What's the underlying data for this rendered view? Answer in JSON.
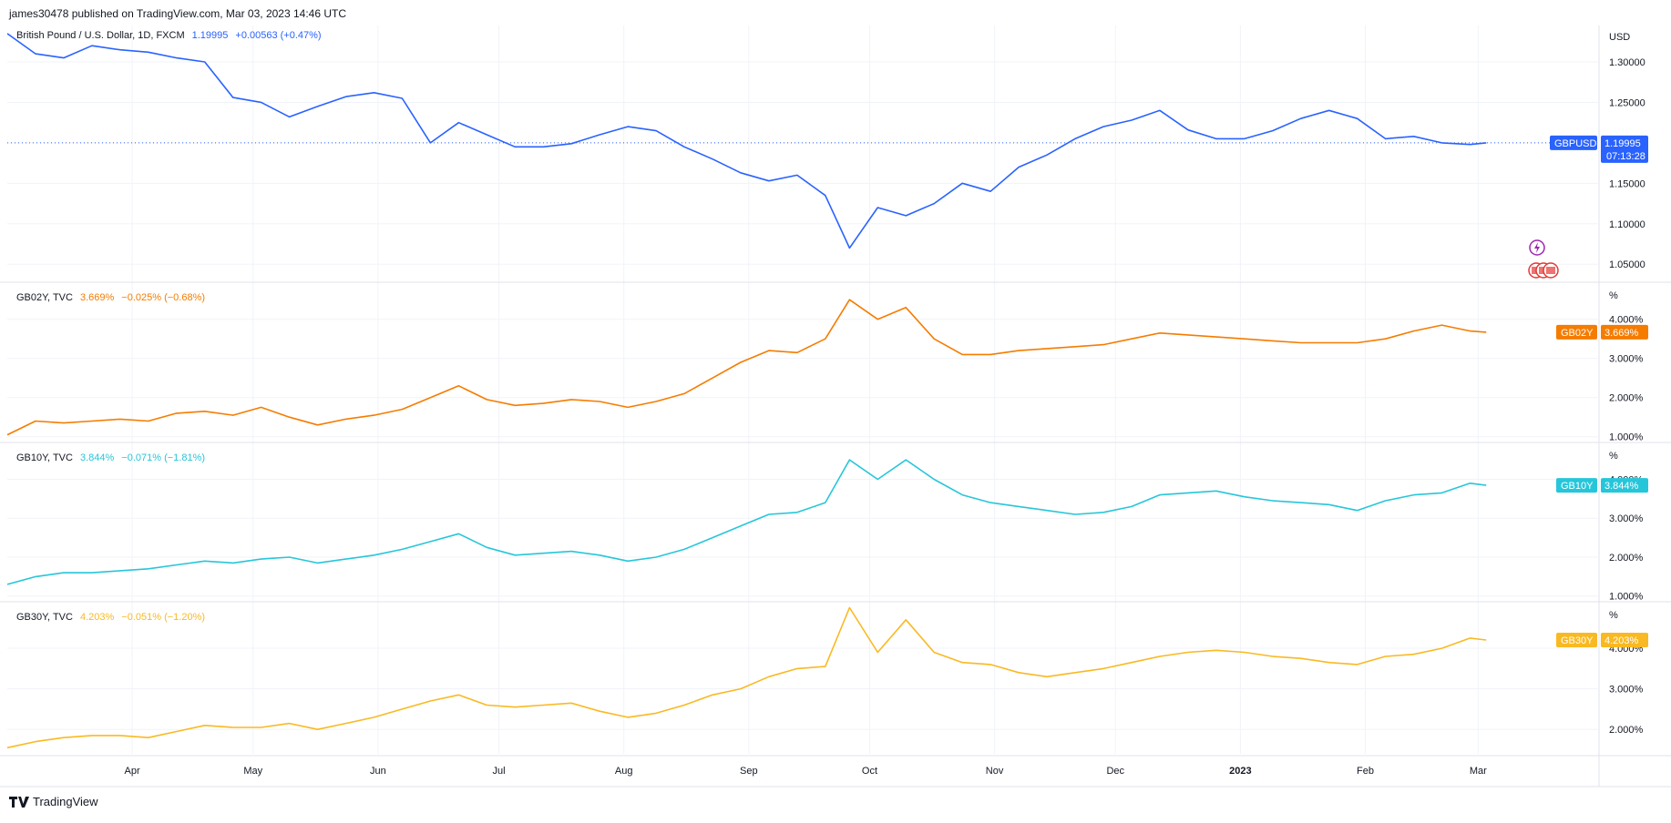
{
  "header": {
    "publisher": "james30478 published on TradingView.com, Mar 03, 2023 14:46 UTC"
  },
  "footer": {
    "brand": "TradingView"
  },
  "colors": {
    "gbpusd": "#2962ff",
    "gb02y": "#f57c00",
    "gb10y": "#26c6da",
    "gb30y": "#f9b922",
    "grid": "#f0f3fa",
    "axis_text": "#131722"
  },
  "chart_data": [
    {
      "type": "line",
      "pane": "gbpusd",
      "legend": {
        "name": "British Pound / U.S. Dollar, 1D, FXCM",
        "last": "1.19995",
        "change": "+0.00563 (+0.47%)"
      },
      "unit_label": "USD",
      "ylim": [
        1.03,
        1.345
      ],
      "yticks": [
        "1.30000",
        "1.25000",
        "1.20000",
        "1.15000",
        "1.10000",
        "1.05000"
      ],
      "ytick_values": [
        1.3,
        1.25,
        1.2,
        1.15,
        1.1,
        1.05
      ],
      "price_tag": {
        "symbol": "GBPUSD",
        "value": "1.19995",
        "countdown": "07:13:28",
        "num": 1.19995
      },
      "x": [
        "2022-03-01",
        "2022-03-08",
        "2022-03-15",
        "2022-03-22",
        "2022-03-29",
        "2022-04-05",
        "2022-04-12",
        "2022-04-19",
        "2022-04-26",
        "2022-05-03",
        "2022-05-10",
        "2022-05-17",
        "2022-05-24",
        "2022-05-31",
        "2022-06-07",
        "2022-06-14",
        "2022-06-21",
        "2022-06-28",
        "2022-07-05",
        "2022-07-12",
        "2022-07-19",
        "2022-07-26",
        "2022-08-02",
        "2022-08-09",
        "2022-08-16",
        "2022-08-23",
        "2022-08-30",
        "2022-09-06",
        "2022-09-13",
        "2022-09-20",
        "2022-09-26",
        "2022-10-03",
        "2022-10-10",
        "2022-10-17",
        "2022-10-24",
        "2022-10-31",
        "2022-11-07",
        "2022-11-14",
        "2022-11-21",
        "2022-11-28",
        "2022-12-05",
        "2022-12-12",
        "2022-12-19",
        "2022-12-26",
        "2023-01-02",
        "2023-01-09",
        "2023-01-16",
        "2023-01-23",
        "2023-01-30",
        "2023-02-06",
        "2023-02-13",
        "2023-02-20",
        "2023-02-27",
        "2023-03-03"
      ],
      "values": [
        1.335,
        1.31,
        1.305,
        1.32,
        1.315,
        1.312,
        1.305,
        1.3,
        1.256,
        1.25,
        1.232,
        1.245,
        1.257,
        1.262,
        1.255,
        1.2,
        1.225,
        1.21,
        1.195,
        1.195,
        1.199,
        1.21,
        1.22,
        1.215,
        1.195,
        1.18,
        1.163,
        1.153,
        1.16,
        1.135,
        1.07,
        1.12,
        1.11,
        1.125,
        1.15,
        1.14,
        1.17,
        1.185,
        1.205,
        1.22,
        1.228,
        1.24,
        1.216,
        1.205,
        1.205,
        1.215,
        1.23,
        1.24,
        1.23,
        1.205,
        1.208,
        1.2,
        1.198,
        1.19995
      ]
    },
    {
      "type": "line",
      "pane": "gb02y",
      "legend": {
        "name": "GB02Y, TVC",
        "last": "3.669%",
        "change": "−0.025% (−0.68%)"
      },
      "unit_label": "%",
      "ylim": [
        0.9,
        4.9
      ],
      "yticks": [
        "4.000%",
        "3.000%",
        "2.000%",
        "1.000%"
      ],
      "ytick_values": [
        4,
        3,
        2,
        1
      ],
      "price_tag": {
        "symbol": "GB02Y",
        "value": "3.669%",
        "num": 3.669
      },
      "x": [
        "2022-03-01",
        "2022-03-08",
        "2022-03-15",
        "2022-03-22",
        "2022-03-29",
        "2022-04-05",
        "2022-04-12",
        "2022-04-19",
        "2022-04-26",
        "2022-05-03",
        "2022-05-10",
        "2022-05-17",
        "2022-05-24",
        "2022-05-31",
        "2022-06-07",
        "2022-06-14",
        "2022-06-21",
        "2022-06-28",
        "2022-07-05",
        "2022-07-12",
        "2022-07-19",
        "2022-07-26",
        "2022-08-02",
        "2022-08-09",
        "2022-08-16",
        "2022-08-23",
        "2022-08-30",
        "2022-09-06",
        "2022-09-13",
        "2022-09-20",
        "2022-09-26",
        "2022-10-03",
        "2022-10-10",
        "2022-10-17",
        "2022-10-24",
        "2022-10-31",
        "2022-11-07",
        "2022-11-14",
        "2022-11-21",
        "2022-11-28",
        "2022-12-05",
        "2022-12-12",
        "2022-12-19",
        "2022-12-26",
        "2023-01-02",
        "2023-01-09",
        "2023-01-16",
        "2023-01-23",
        "2023-01-30",
        "2023-02-06",
        "2023-02-13",
        "2023-02-20",
        "2023-02-27",
        "2023-03-03"
      ],
      "values": [
        1.05,
        1.4,
        1.35,
        1.4,
        1.45,
        1.4,
        1.6,
        1.65,
        1.55,
        1.75,
        1.5,
        1.3,
        1.45,
        1.55,
        1.7,
        2.0,
        2.3,
        1.95,
        1.8,
        1.85,
        1.95,
        1.9,
        1.75,
        1.9,
        2.1,
        2.5,
        2.9,
        3.2,
        3.15,
        3.5,
        4.5,
        4.0,
        4.3,
        3.5,
        3.1,
        3.1,
        3.2,
        3.25,
        3.3,
        3.35,
        3.5,
        3.65,
        3.6,
        3.55,
        3.5,
        3.45,
        3.4,
        3.4,
        3.4,
        3.5,
        3.7,
        3.85,
        3.7,
        3.669
      ]
    },
    {
      "type": "line",
      "pane": "gb10y",
      "legend": {
        "name": "GB10Y, TVC",
        "last": "3.844%",
        "change": "−0.071% (−1.81%)"
      },
      "unit_label": "%",
      "ylim": [
        0.9,
        4.9
      ],
      "yticks": [
        "4.000%",
        "3.000%",
        "2.000%",
        "1.000%"
      ],
      "ytick_values": [
        4,
        3,
        2,
        1
      ],
      "price_tag": {
        "symbol": "GB10Y",
        "value": "3.844%",
        "num": 3.844
      },
      "x": [
        "2022-03-01",
        "2022-03-08",
        "2022-03-15",
        "2022-03-22",
        "2022-03-29",
        "2022-04-05",
        "2022-04-12",
        "2022-04-19",
        "2022-04-26",
        "2022-05-03",
        "2022-05-10",
        "2022-05-17",
        "2022-05-24",
        "2022-05-31",
        "2022-06-07",
        "2022-06-14",
        "2022-06-21",
        "2022-06-28",
        "2022-07-05",
        "2022-07-12",
        "2022-07-19",
        "2022-07-26",
        "2022-08-02",
        "2022-08-09",
        "2022-08-16",
        "2022-08-23",
        "2022-08-30",
        "2022-09-06",
        "2022-09-13",
        "2022-09-20",
        "2022-09-26",
        "2022-10-03",
        "2022-10-10",
        "2022-10-17",
        "2022-10-24",
        "2022-10-31",
        "2022-11-07",
        "2022-11-14",
        "2022-11-21",
        "2022-11-28",
        "2022-12-05",
        "2022-12-12",
        "2022-12-19",
        "2022-12-26",
        "2023-01-02",
        "2023-01-09",
        "2023-01-16",
        "2023-01-23",
        "2023-01-30",
        "2023-02-06",
        "2023-02-13",
        "2023-02-20",
        "2023-02-27",
        "2023-03-03"
      ],
      "values": [
        1.3,
        1.5,
        1.6,
        1.6,
        1.65,
        1.7,
        1.8,
        1.9,
        1.85,
        1.95,
        2.0,
        1.85,
        1.95,
        2.05,
        2.2,
        2.4,
        2.6,
        2.25,
        2.05,
        2.1,
        2.15,
        2.05,
        1.9,
        2.0,
        2.2,
        2.5,
        2.8,
        3.1,
        3.15,
        3.4,
        4.5,
        4.0,
        4.5,
        4.0,
        3.6,
        3.4,
        3.3,
        3.2,
        3.1,
        3.15,
        3.3,
        3.6,
        3.65,
        3.7,
        3.55,
        3.45,
        3.4,
        3.35,
        3.2,
        3.45,
        3.6,
        3.65,
        3.9,
        3.844
      ]
    },
    {
      "type": "line",
      "pane": "gb30y",
      "legend": {
        "name": "GB30Y, TVC",
        "last": "4.203%",
        "change": "−0.051% (−1.20%)"
      },
      "unit_label": "%",
      "ylim": [
        1.4,
        5.1
      ],
      "yticks": [
        "4.000%",
        "3.000%",
        "2.000%"
      ],
      "ytick_values": [
        4,
        3,
        2
      ],
      "price_tag": {
        "symbol": "GB30Y",
        "value": "4.203%",
        "num": 4.203
      },
      "x": [
        "2022-03-01",
        "2022-03-08",
        "2022-03-15",
        "2022-03-22",
        "2022-03-29",
        "2022-04-05",
        "2022-04-12",
        "2022-04-19",
        "2022-04-26",
        "2022-05-03",
        "2022-05-10",
        "2022-05-17",
        "2022-05-24",
        "2022-05-31",
        "2022-06-07",
        "2022-06-14",
        "2022-06-21",
        "2022-06-28",
        "2022-07-05",
        "2022-07-12",
        "2022-07-19",
        "2022-07-26",
        "2022-08-02",
        "2022-08-09",
        "2022-08-16",
        "2022-08-23",
        "2022-08-30",
        "2022-09-06",
        "2022-09-13",
        "2022-09-20",
        "2022-09-26",
        "2022-10-03",
        "2022-10-10",
        "2022-10-17",
        "2022-10-24",
        "2022-10-31",
        "2022-11-07",
        "2022-11-14",
        "2022-11-21",
        "2022-11-28",
        "2022-12-05",
        "2022-12-12",
        "2022-12-19",
        "2022-12-26",
        "2023-01-02",
        "2023-01-09",
        "2023-01-16",
        "2023-01-23",
        "2023-01-30",
        "2023-02-06",
        "2023-02-13",
        "2023-02-20",
        "2023-02-27",
        "2023-03-03"
      ],
      "values": [
        1.55,
        1.7,
        1.8,
        1.85,
        1.85,
        1.8,
        1.95,
        2.1,
        2.05,
        2.05,
        2.15,
        2.0,
        2.15,
        2.3,
        2.5,
        2.7,
        2.85,
        2.6,
        2.55,
        2.6,
        2.65,
        2.45,
        2.3,
        2.4,
        2.6,
        2.85,
        3.0,
        3.3,
        3.5,
        3.55,
        5.0,
        3.9,
        4.7,
        3.9,
        3.65,
        3.6,
        3.4,
        3.3,
        3.4,
        3.5,
        3.65,
        3.8,
        3.9,
        3.95,
        3.9,
        3.8,
        3.75,
        3.65,
        3.6,
        3.8,
        3.85,
        4.0,
        4.25,
        4.203
      ]
    }
  ],
  "x_axis": {
    "ticks": [
      {
        "label": "Apr",
        "date": "2022-04-01",
        "bold": false
      },
      {
        "label": "May",
        "date": "2022-05-01",
        "bold": false
      },
      {
        "label": "Jun",
        "date": "2022-06-01",
        "bold": false
      },
      {
        "label": "Jul",
        "date": "2022-07-01",
        "bold": false
      },
      {
        "label": "Aug",
        "date": "2022-08-01",
        "bold": false
      },
      {
        "label": "Sep",
        "date": "2022-09-01",
        "bold": false
      },
      {
        "label": "Oct",
        "date": "2022-10-01",
        "bold": false
      },
      {
        "label": "Nov",
        "date": "2022-11-01",
        "bold": false
      },
      {
        "label": "Dec",
        "date": "2022-12-01",
        "bold": false
      },
      {
        "label": "2023",
        "date": "2023-01-01",
        "bold": true
      },
      {
        "label": "Feb",
        "date": "2023-02-01",
        "bold": false
      },
      {
        "label": "Mar",
        "date": "2023-03-01",
        "bold": false
      }
    ],
    "range": [
      "2022-03-01",
      "2023-03-31"
    ]
  }
}
